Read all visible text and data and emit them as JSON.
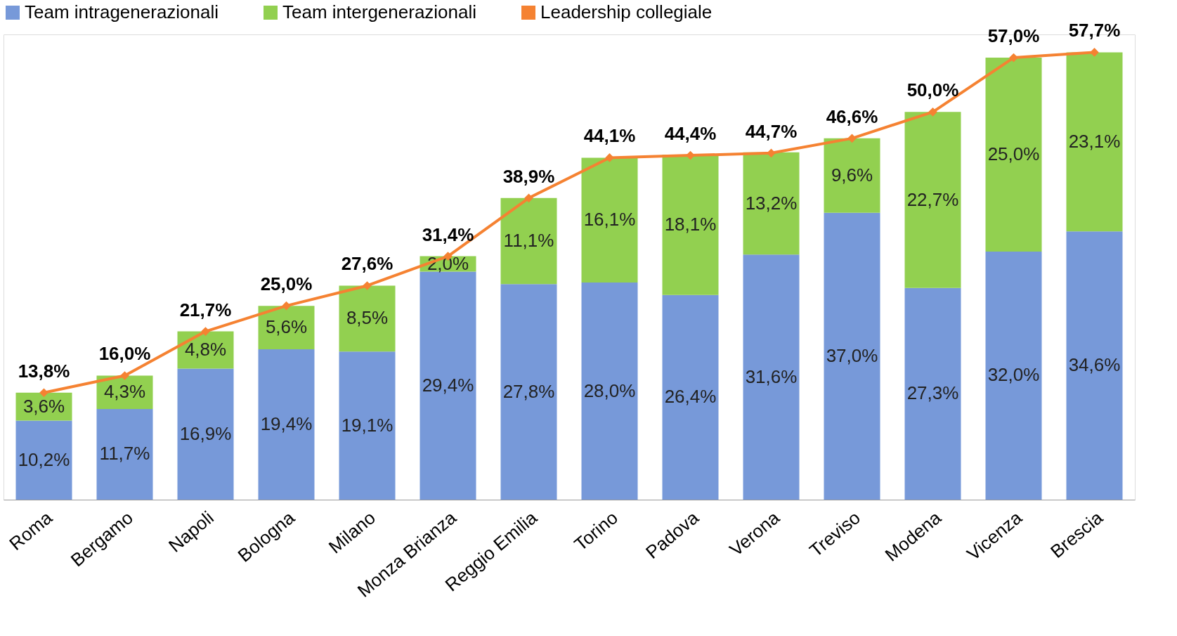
{
  "chart_data": {
    "type": "bar",
    "stacked": true,
    "legend": "top",
    "tick_labels": "x",
    "categories": [
      "Roma",
      "Bergamo",
      "Napoli",
      "Bologna",
      "Milano",
      "Monza Brianza",
      "Reggio Emilia",
      "Torino",
      "Padova",
      "Verona",
      "Treviso",
      "Modena",
      "Vicenza",
      "Brescia"
    ],
    "series": [
      {
        "name": "Team intragenerazionali",
        "color": "#7799d9",
        "values": [
          10.2,
          11.7,
          16.9,
          19.4,
          19.1,
          29.4,
          27.8,
          28.0,
          26.4,
          31.6,
          37.0,
          27.3,
          32.0,
          34.6
        ],
        "value_labels": [
          "10,2%",
          "11,7%",
          "16,9%",
          "19,4%",
          "19,1%",
          "29,4%",
          "27,8%",
          "28,0%",
          "26,4%",
          "31,6%",
          "37,0%",
          "27,3%",
          "32,0%",
          "34,6%"
        ]
      },
      {
        "name": "Team intergenerazionali",
        "color": "#92d050",
        "values": [
          3.6,
          4.3,
          4.8,
          5.6,
          8.5,
          2.0,
          11.1,
          16.1,
          18.1,
          13.2,
          9.6,
          22.7,
          25.0,
          23.1
        ],
        "value_labels": [
          "3,6%",
          "4,3%",
          "4,8%",
          "5,6%",
          "8,5%",
          "2,0%",
          "11,1%",
          "16,1%",
          "18,1%",
          "13,2%",
          "9,6%",
          "22,7%",
          "25,0%",
          "23,1%"
        ]
      },
      {
        "name": "Leadership collegiale",
        "type": "line",
        "color": "#f58232",
        "marker": "diamond",
        "line_style": "solid",
        "values": [
          13.8,
          16.0,
          21.7,
          25.0,
          27.6,
          31.4,
          38.9,
          44.1,
          44.4,
          44.7,
          46.6,
          50.0,
          57.0,
          57.7
        ],
        "value_labels": [
          "13,8%",
          "16,0%",
          "21,7%",
          "25,0%",
          "27,6%",
          "31,4%",
          "38,9%",
          "44,1%",
          "44,4%",
          "44,7%",
          "46,6%",
          "50,0%",
          "57,0%",
          "57,7%"
        ]
      }
    ]
  }
}
